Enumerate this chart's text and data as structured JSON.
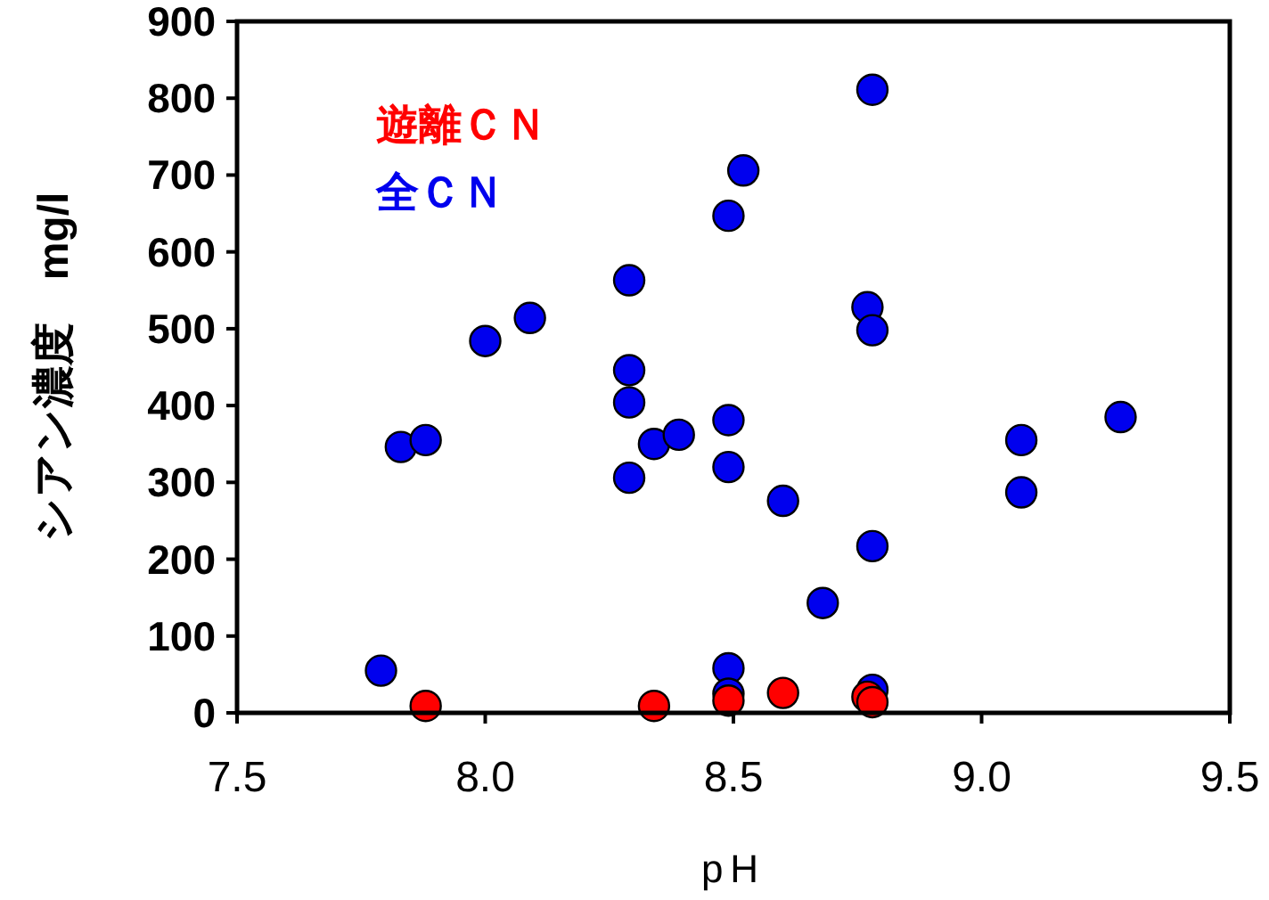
{
  "chart_data": {
    "type": "scatter",
    "xlabel": "pH",
    "ylabel": "シアン濃度　mg/l",
    "xlim": [
      7.5,
      9.5
    ],
    "xticks": [
      {
        "value": 7.5,
        "label": "7.5"
      },
      {
        "value": 8,
        "label": "8.0"
      },
      {
        "value": 8.5,
        "label": "8.5"
      },
      {
        "value": 9,
        "label": "9.0"
      },
      {
        "value": 9.5,
        "label": "9.5"
      }
    ],
    "ylim": [
      0,
      900
    ],
    "yticks": [
      0,
      100,
      200,
      300,
      400,
      500,
      600,
      700,
      800,
      900
    ],
    "grid": false,
    "legend": "top left",
    "marker": "circle",
    "series": [
      {
        "name": "遊離ＣＮ",
        "color": "#ff0000",
        "x": [
          7.88,
          8.34,
          8.49,
          8.6,
          8.77,
          8.78
        ],
        "values": [
          9,
          9,
          16,
          26,
          21,
          14
        ]
      },
      {
        "name": "全ＣＮ",
        "color": "#0000ee",
        "x": [
          7.79,
          7.83,
          7.88,
          8.0,
          8.09,
          8.29,
          8.29,
          8.29,
          8.29,
          8.34,
          8.39,
          8.49,
          8.52,
          8.49,
          8.49,
          8.49,
          8.49,
          8.6,
          8.68,
          8.77,
          8.78,
          8.78,
          8.78,
          8.78,
          9.08,
          9.08,
          9.28
        ],
        "values": [
          55,
          346,
          355,
          484,
          514,
          563,
          446,
          404,
          306,
          350,
          362,
          647,
          706,
          381,
          320,
          58,
          25,
          276,
          143,
          528,
          498,
          811,
          217,
          30,
          355,
          287,
          385
        ]
      }
    ]
  }
}
